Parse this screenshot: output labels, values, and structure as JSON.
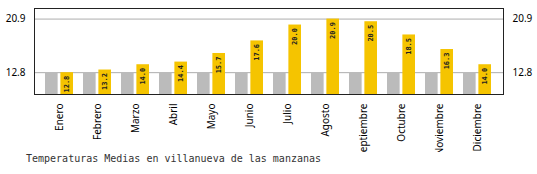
{
  "chart_data": {
    "type": "bar",
    "title": "Temperaturas Medias en villanueva de las manzanas",
    "categories": [
      "Enero",
      "Febrero",
      "Marzo",
      "Abril",
      "Mayo",
      "Junio",
      "Julio",
      "Agosto",
      "Septiembre",
      "Octubre",
      "Noviembre",
      "Diciembre"
    ],
    "series": [
      {
        "color": "#BBBBBB",
        "values": [
          12.8,
          12.8,
          12.8,
          12.8,
          12.8,
          12.8,
          12.8,
          12.8,
          12.8,
          12.8,
          12.8,
          12.8
        ]
      },
      {
        "color": "#F5C400",
        "values": [
          12.8,
          13.2,
          14.0,
          14.4,
          15.7,
          17.6,
          20.0,
          20.9,
          20.5,
          18.5,
          16.3,
          14.0
        ],
        "data_labels": true,
        "value_labels": [
          "12.8",
          "13.2",
          "14.0",
          "14.4",
          "15.7",
          "17.6",
          "20.0",
          "20.9",
          "20.5",
          "18.5",
          "16.3",
          "14.0"
        ]
      }
    ],
    "ylim": [
      9.5,
      22.5
    ],
    "yticks": [
      12.8,
      20.9
    ],
    "grid": true
  }
}
